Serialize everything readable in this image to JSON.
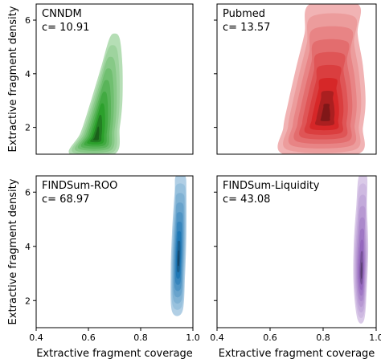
{
  "chart_data": [
    {
      "type": "kde-contour",
      "panel": "CNNDM",
      "annotation": "c= 10.91",
      "color": "#2ca02c",
      "xlim": [
        0.4,
        1.0
      ],
      "ylim": [
        1.0,
        6.6
      ],
      "ylabel": "Extractive fragment density",
      "yticks": [
        2,
        4,
        6
      ],
      "density_center": {
        "coverage": 0.63,
        "density": 1.6
      },
      "outer_contour": [
        [
          0.53,
          1.0
        ],
        [
          0.57,
          1.8
        ],
        [
          0.61,
          3.0
        ],
        [
          0.65,
          4.3
        ],
        [
          0.68,
          5.3
        ],
        [
          0.7,
          5.5
        ],
        [
          0.72,
          5.3
        ],
        [
          0.73,
          4.3
        ],
        [
          0.73,
          3.0
        ],
        [
          0.72,
          2.0
        ],
        [
          0.7,
          1.0
        ]
      ]
    },
    {
      "type": "kde-contour",
      "panel": "Pubmed",
      "annotation": "c= 13.57",
      "color": "#d62728",
      "xlim": [
        0.4,
        1.0
      ],
      "ylim": [
        1.0,
        6.6
      ],
      "yticks": [
        2,
        4,
        6
      ],
      "density_center": {
        "coverage": 0.81,
        "density": 2.4
      },
      "outer_contour": [
        [
          0.65,
          1.0
        ],
        [
          0.65,
          2.0
        ],
        [
          0.67,
          3.0
        ],
        [
          0.7,
          4.3
        ],
        [
          0.73,
          5.5
        ],
        [
          0.75,
          6.6
        ],
        [
          0.93,
          6.6
        ],
        [
          0.93,
          5.5
        ],
        [
          0.95,
          4.3
        ],
        [
          0.96,
          3.0
        ],
        [
          0.95,
          2.0
        ],
        [
          0.93,
          1.0
        ]
      ]
    },
    {
      "type": "kde-contour",
      "panel": "FINDSum-ROO",
      "annotation": "c= 68.97",
      "color": "#1f77b4",
      "xlim": [
        0.4,
        1.0
      ],
      "ylim": [
        1.0,
        6.6
      ],
      "xlabel": "Extractive fragment coverage",
      "ylabel": "Extractive fragment density",
      "xticks": [
        0.4,
        0.6,
        0.8,
        1.0
      ],
      "yticks": [
        2,
        4,
        6
      ],
      "density_center": {
        "coverage": 0.945,
        "density": 3.5
      },
      "outer_contour": [
        [
          0.92,
          1.6
        ],
        [
          0.915,
          3.0
        ],
        [
          0.92,
          4.5
        ],
        [
          0.93,
          6.0
        ],
        [
          0.935,
          6.6
        ],
        [
          0.97,
          6.6
        ],
        [
          0.975,
          6.0
        ],
        [
          0.975,
          4.5
        ],
        [
          0.97,
          3.0
        ],
        [
          0.96,
          1.6
        ]
      ]
    },
    {
      "type": "kde-contour",
      "panel": "FINDSum-Liquidity",
      "annotation": "c= 43.08",
      "color": "#9467bd",
      "xlim": [
        0.4,
        1.0
      ],
      "ylim": [
        1.0,
        6.6
      ],
      "xlabel": "Extractive fragment coverage",
      "xticks": [
        0.4,
        0.6,
        0.8,
        1.0
      ],
      "yticks": [
        2,
        4,
        6
      ],
      "density_center": {
        "coverage": 0.945,
        "density": 3.0
      },
      "outer_contour": [
        [
          0.93,
          1.3
        ],
        [
          0.915,
          2.5
        ],
        [
          0.915,
          4.0
        ],
        [
          0.925,
          5.5
        ],
        [
          0.935,
          6.6
        ],
        [
          0.965,
          6.6
        ],
        [
          0.965,
          5.5
        ],
        [
          0.97,
          4.0
        ],
        [
          0.965,
          2.5
        ],
        [
          0.955,
          1.3
        ]
      ]
    }
  ]
}
